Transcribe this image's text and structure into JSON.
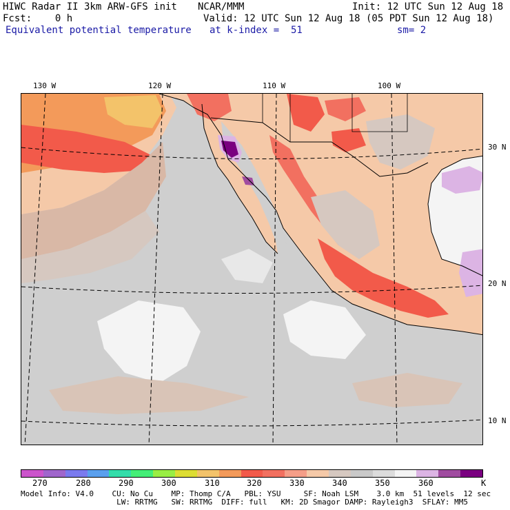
{
  "header": {
    "title": "HIWC Radar II 3km ARW-GFS init",
    "org": "NCAR/MMM",
    "init": "Init: 12 UTC Sun 12 Aug 18",
    "fcst": "Fcst:    0 h",
    "valid": "Valid: 12 UTC Sun 12 Aug 18 (05 PDT Sun 12 Aug 18)",
    "field": "Equivalent potential temperature",
    "level": "at k-index =  51",
    "smoothing": "sm= 2"
  },
  "map": {
    "lon_labels": [
      "130 W",
      "120 W",
      "110 W",
      "100 W"
    ],
    "lat_labels": [
      "30 N",
      "20 N",
      "10 N"
    ],
    "colors": {
      "ocean_base": "#cfcfcf",
      "land_base": "#f5c9a8"
    }
  },
  "colorbar": {
    "unit": "K",
    "tick_labels": [
      "270",
      "280",
      "290",
      "300",
      "310",
      "320",
      "330",
      "340",
      "350",
      "360"
    ],
    "colors": [
      "#cc55cc",
      "#a066cc",
      "#7a7aee",
      "#5aa0ee",
      "#33ddaa",
      "#44ee77",
      "#99ee44",
      "#dddd33",
      "#f3c36a",
      "#f39a5a",
      "#f25a4a",
      "#f27060",
      "#f59e88",
      "#f5c9a8",
      "#d6c8c0",
      "#c9c9c9",
      "#dcdcdc",
      "#f4f4f4",
      "#dcb4e4",
      "#a04ca0",
      "#7a0080"
    ]
  },
  "footer": {
    "line1": "Model Info: V4.0    CU: No Cu    MP: Thomp C/A   PBL: YSU     SF: Noah LSM    3.0 km  51 levels  12 sec",
    "line2": "                     LW: RRTMG   SW: RRTMG  DIFF: full   KM: 2D Smagor DAMP: Rayleigh3  SFLAY: MM5"
  }
}
